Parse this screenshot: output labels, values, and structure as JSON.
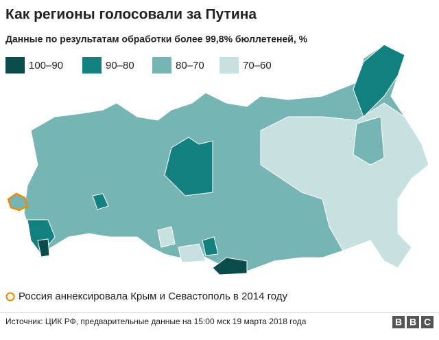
{
  "header": {
    "title": "Как регионы голосовали за Путина",
    "subtitle": "Данные по результатам обработки более 99,8% бюллетеней, %"
  },
  "legend": [
    {
      "label": "100–90",
      "color": "#0c4b4b"
    },
    {
      "label": "90–80",
      "color": "#12807f"
    },
    {
      "label": "80–70",
      "color": "#76b5b4"
    },
    {
      "label": "70–60",
      "color": "#c6e1e0"
    }
  ],
  "note": "Россия аннексировала Крым и Севастополь в 2014 году",
  "source": "Источник: ЦИК РФ, предварительные данные на 15:00 мск 19 марта 2018 года",
  "logo": [
    "B",
    "B",
    "C"
  ]
}
